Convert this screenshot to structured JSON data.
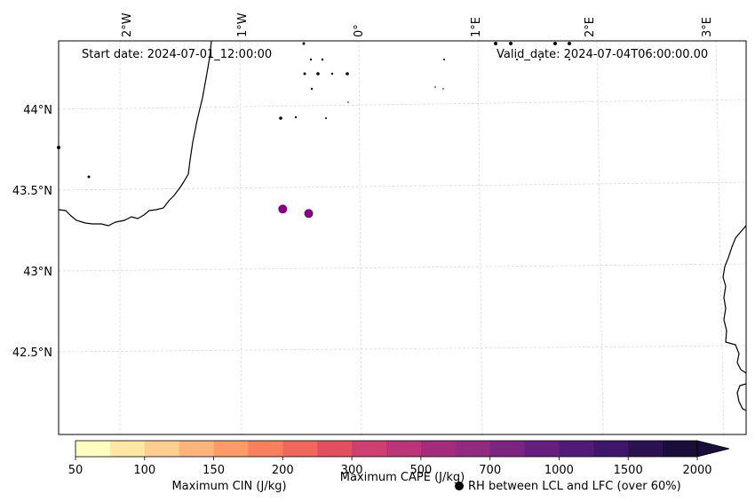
{
  "header": {
    "start_date": "Start date: 2024-07-01_12:00:00",
    "valid_date": "Valid_date: 2024-07-04T06:00:00.00"
  },
  "map": {
    "lon_labels": [
      "2°W",
      "1°W",
      "0°",
      "1°E",
      "2°E",
      "3°E"
    ],
    "lat_labels": [
      "44°N",
      "43.5°N",
      "43°N",
      "42.5°N"
    ],
    "grid_color": "#d3d3d3",
    "coastline_color": "#000000",
    "marker_color": "#800080",
    "markers": [
      {
        "lon": -0.63,
        "lat": 43.39
      },
      {
        "lon": -0.41,
        "lat": 43.36
      }
    ]
  },
  "colorbar": {
    "tick_labels": [
      "50",
      "100",
      "150",
      "200",
      "300",
      "500",
      "700",
      "1000",
      "1500",
      "2000"
    ],
    "colors": [
      "#fffdbf",
      "#fee6a3",
      "#fecd90",
      "#feb47b",
      "#fd9a69",
      "#f8805d",
      "#f0685c",
      "#e2505f",
      "#cd4071",
      "#bb3578",
      "#a52c7c",
      "#922a80",
      "#7d2482",
      "#681e80",
      "#541a79",
      "#3f166b",
      "#2b1152",
      "#1a0e3a"
    ],
    "extend_color": "#1a0e3a",
    "cin_label": "Maximum CIN (J/kg)",
    "cin_label_color": "#ff0000",
    "cape_label": "Maximum CAPE (J/kg)",
    "rh_marker_label": "RH between LCL and LFC (over 60%)"
  }
}
